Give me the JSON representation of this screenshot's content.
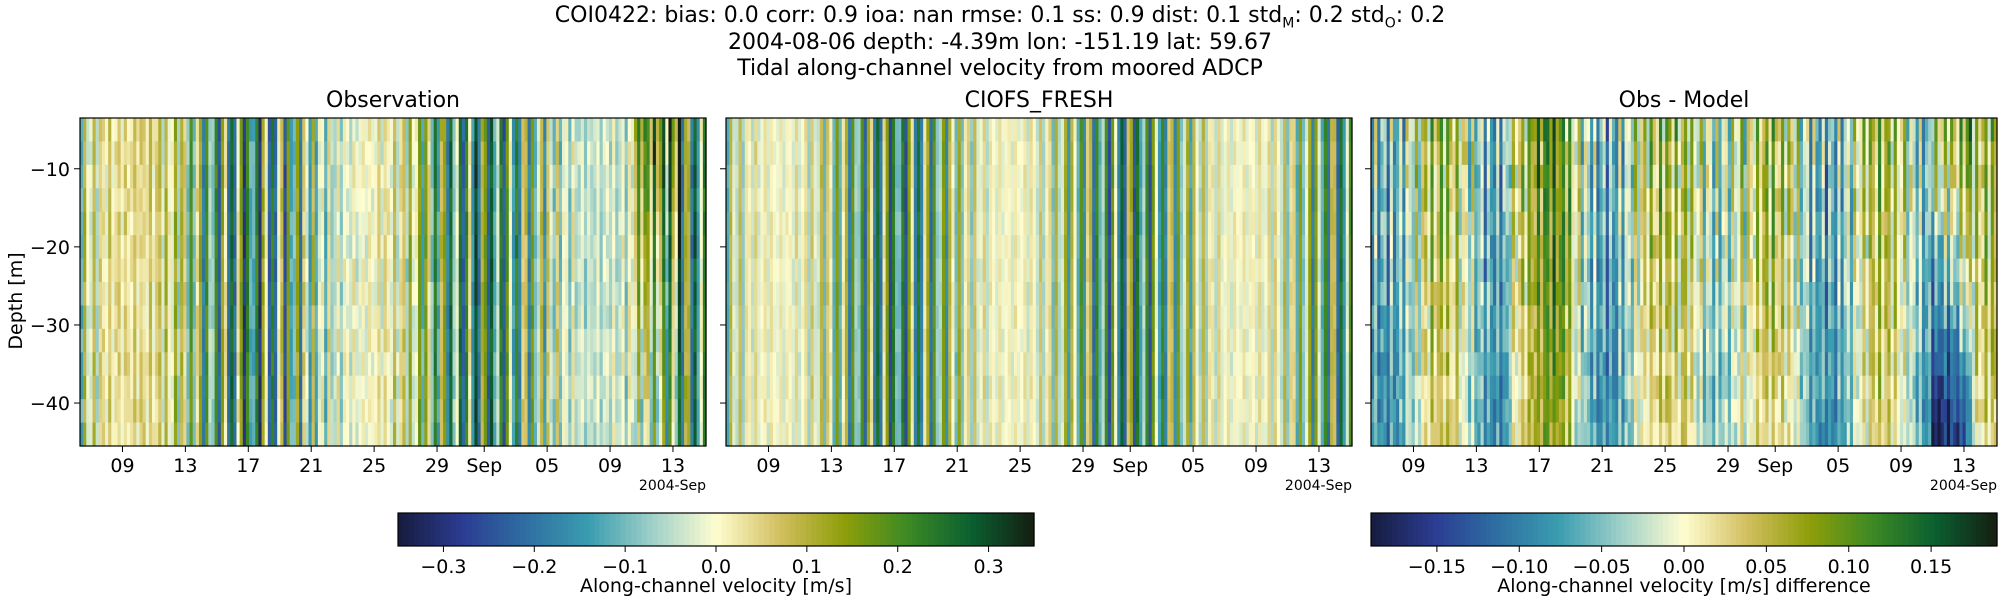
{
  "figure": {
    "title_line1": "COI0422: bias: 0.0  corr: 0.9  ioa: nan  rmse: 0.1  ss: 0.9  dist: 0.1  std",
    "title_line1_sub_M": "M",
    "title_line1_mid": ": 0.2  std",
    "title_line1_sub_O": "O",
    "title_line1_end": ": 0.2",
    "title_line2": "2004-08-06 depth: -4.39m lon: -151.19 lat: 59.67",
    "title_line3": "Tidal along-channel velocity from moored ADCP"
  },
  "colors": {
    "cmap": [
      "#161c3d",
      "#2b3c92",
      "#2e6ea2",
      "#3a9db0",
      "#9fd0c8",
      "#fffdd0",
      "#d2bf60",
      "#8f9e0a",
      "#3d8a24",
      "#0b6031",
      "#141e12"
    ]
  },
  "chart_data": [
    {
      "type": "heatmap",
      "title": "Observation",
      "ylabel": "Depth [m]",
      "ylim": [
        -45.5,
        -3.5
      ],
      "yticks": [
        -10,
        -20,
        -30,
        -40
      ],
      "xticks": [
        "09",
        "13",
        "17",
        "21",
        "25",
        "29",
        "Sep",
        "05",
        "09",
        "13"
      ],
      "x_offset_label": "2004-Sep",
      "vmin": -0.35,
      "vmax": 0.35,
      "notes": "alternating tidal velocity bands, about two per day, near-uniform in depth; surface-intensified positive anomaly near Sep 10-13"
    },
    {
      "type": "heatmap",
      "title": "CIOFS_FRESH",
      "ylim": [
        -45.5,
        -3.5
      ],
      "xticks": [
        "09",
        "13",
        "17",
        "21",
        "25",
        "29",
        "Sep",
        "05",
        "09",
        "13"
      ],
      "x_offset_label": "2004-Sep",
      "vmin": -0.35,
      "vmax": 0.35
    },
    {
      "type": "heatmap",
      "title": "Obs - Model",
      "ylim": [
        -45.5,
        -3.5
      ],
      "xticks": [
        "09",
        "13",
        "17",
        "21",
        "25",
        "29",
        "Sep",
        "05",
        "09",
        "13"
      ],
      "x_offset_label": "2004-Sep",
      "vmin": -0.19,
      "vmax": 0.19
    }
  ],
  "colorbars": [
    {
      "label": "Along-channel velocity [m/s]",
      "range": [
        -0.35,
        0.35
      ],
      "ticks": [
        -0.3,
        -0.2,
        -0.1,
        0.0,
        0.1,
        0.2,
        0.3
      ],
      "tick_labels": [
        "−0.3",
        "−0.2",
        "−0.1",
        "0.0",
        "0.1",
        "0.2",
        "0.3"
      ]
    },
    {
      "label": "Along-channel velocity [m/s] difference",
      "range": [
        -0.19,
        0.19
      ],
      "ticks": [
        -0.15,
        -0.1,
        -0.05,
        0.0,
        0.05,
        0.1,
        0.15
      ],
      "tick_labels": [
        "−0.15",
        "−0.10",
        "−0.05",
        "0.00",
        "0.05",
        "0.10",
        "0.15"
      ]
    }
  ]
}
